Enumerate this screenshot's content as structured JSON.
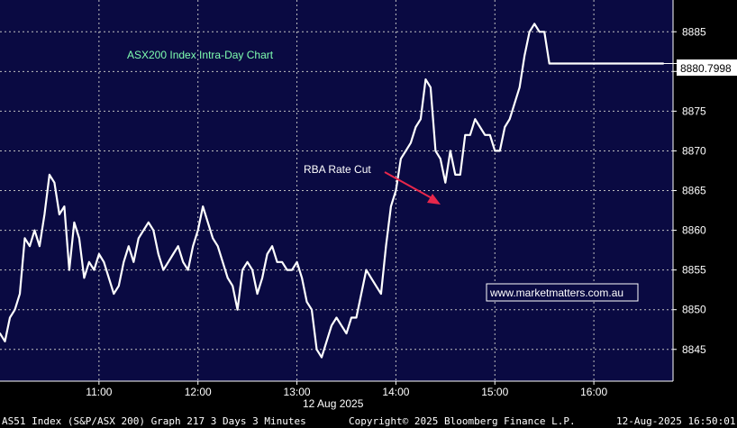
{
  "colors": {
    "background": "#000000",
    "plot_background": "#0a0a42",
    "line": "#ffffff",
    "grid": "#bfbfbf",
    "title": "#7fffb0",
    "annotation_arrow": "#e8274b",
    "watermark_border": "#ffffff"
  },
  "chart_data": {
    "type": "line",
    "title": "ASX200 Index Intra-Day Chart",
    "date_label": "12 Aug 2025",
    "xlabel": "",
    "ylabel": "",
    "x_ticks": [
      "11:00",
      "12:00",
      "13:00",
      "14:00",
      "15:00",
      "16:00"
    ],
    "y_ticks": [
      8845,
      8850,
      8855,
      8860,
      8865,
      8870,
      8875,
      8880,
      8885
    ],
    "y_tick_labels": [
      "8845",
      "8850",
      "8855",
      "8860",
      "8865",
      "8870",
      "8875",
      "8880",
      "8885"
    ],
    "xlim": [
      "10:00",
      "16:48"
    ],
    "ylim": [
      8841,
      8889
    ],
    "grid": true,
    "last_value_label": "8880.7998",
    "annotation": {
      "text": "RBA Rate Cut",
      "time": "14:25",
      "value": 8863
    },
    "series": [
      {
        "x": [
          "10:00",
          "10:03",
          "10:06",
          "10:09",
          "10:12",
          "10:15",
          "10:18",
          "10:21",
          "10:24",
          "10:27",
          "10:30",
          "10:33",
          "10:36",
          "10:39",
          "10:42",
          "10:45",
          "10:48",
          "10:51",
          "10:54",
          "10:57",
          "11:00",
          "11:03",
          "11:06",
          "11:09",
          "11:12",
          "11:15",
          "11:18",
          "11:21",
          "11:24",
          "11:27",
          "11:30",
          "11:33",
          "11:36",
          "11:39",
          "11:42",
          "11:45",
          "11:48",
          "11:51",
          "11:54",
          "11:57",
          "12:00",
          "12:03",
          "12:06",
          "12:09",
          "12:12",
          "12:15",
          "12:18",
          "12:21",
          "12:24",
          "12:27",
          "12:30",
          "12:33",
          "12:36",
          "12:39",
          "12:42",
          "12:45",
          "12:48",
          "12:51",
          "12:54",
          "12:57",
          "13:00",
          "13:03",
          "13:06",
          "13:09",
          "13:12",
          "13:15",
          "13:18",
          "13:21",
          "13:24",
          "13:27",
          "13:30",
          "13:33",
          "13:36",
          "13:39",
          "13:42",
          "13:45",
          "13:48",
          "13:51",
          "13:54",
          "13:57",
          "14:00",
          "14:03",
          "14:06",
          "14:09",
          "14:12",
          "14:15",
          "14:18",
          "14:21",
          "14:24",
          "14:27",
          "14:30",
          "14:33",
          "14:36",
          "14:39",
          "14:42",
          "14:45",
          "14:48",
          "14:51",
          "14:54",
          "14:57",
          "15:00",
          "15:03",
          "15:06",
          "15:09",
          "15:12",
          "15:15",
          "15:18",
          "15:21",
          "15:24",
          "15:27",
          "15:30",
          "15:33",
          "15:36",
          "15:39",
          "15:42",
          "15:45",
          "15:48",
          "15:51",
          "15:54",
          "15:57",
          "16:00",
          "16:03",
          "16:06",
          "16:09",
          "16:12",
          "16:15",
          "16:18",
          "16:21",
          "16:24",
          "16:27",
          "16:30",
          "16:33",
          "16:36",
          "16:39",
          "16:42"
        ],
        "y": [
          8847,
          8846,
          8849,
          8850,
          8852,
          8859,
          8858,
          8860,
          8858,
          8862,
          8867,
          8866,
          8862,
          8863,
          8855,
          8861,
          8859,
          8854,
          8856,
          8855,
          8857,
          8856,
          8854,
          8852,
          8853,
          8856,
          8858,
          8856,
          8859,
          8860,
          8861,
          8860,
          8857,
          8855,
          8856,
          8857,
          8858,
          8856,
          8855,
          8858,
          8860,
          8863,
          8861,
          8859,
          8858,
          8856,
          8854,
          8853,
          8850,
          8855,
          8856,
          8855,
          8852,
          8854,
          8857,
          8858,
          8856,
          8856,
          8855,
          8855,
          8856,
          8854,
          8851,
          8850,
          8845,
          8844,
          8846,
          8848,
          8849,
          8848,
          8847,
          8849,
          8849,
          8852,
          8855,
          8854,
          8853,
          8852,
          8858,
          8863,
          8865,
          8869,
          8870,
          8871,
          8873,
          8874,
          8879,
          8878,
          8870,
          8869,
          8866,
          8870,
          8867,
          8867,
          8872,
          8872,
          8874,
          8873,
          8872,
          8872,
          8870,
          8870,
          8873,
          8874,
          8876,
          8878,
          8882,
          8885,
          8886,
          8885,
          8885,
          8881,
          8881,
          8881,
          8881,
          8881,
          8881,
          8881,
          8881,
          8881,
          8881,
          8881,
          8881,
          8881,
          8881,
          8881,
          8881,
          8881,
          8881,
          8881,
          8881,
          8881,
          8881,
          8881,
          8881
        ]
      }
    ]
  },
  "watermark": "www.marketmatters.com.au",
  "footer": {
    "left": "AS51 Index (S&P/ASX 200) Graph 217 3 Days 3 Minutes",
    "center": "Copyright© 2025 Bloomberg Finance L.P.",
    "right": "12-Aug-2025 16:50:01"
  }
}
